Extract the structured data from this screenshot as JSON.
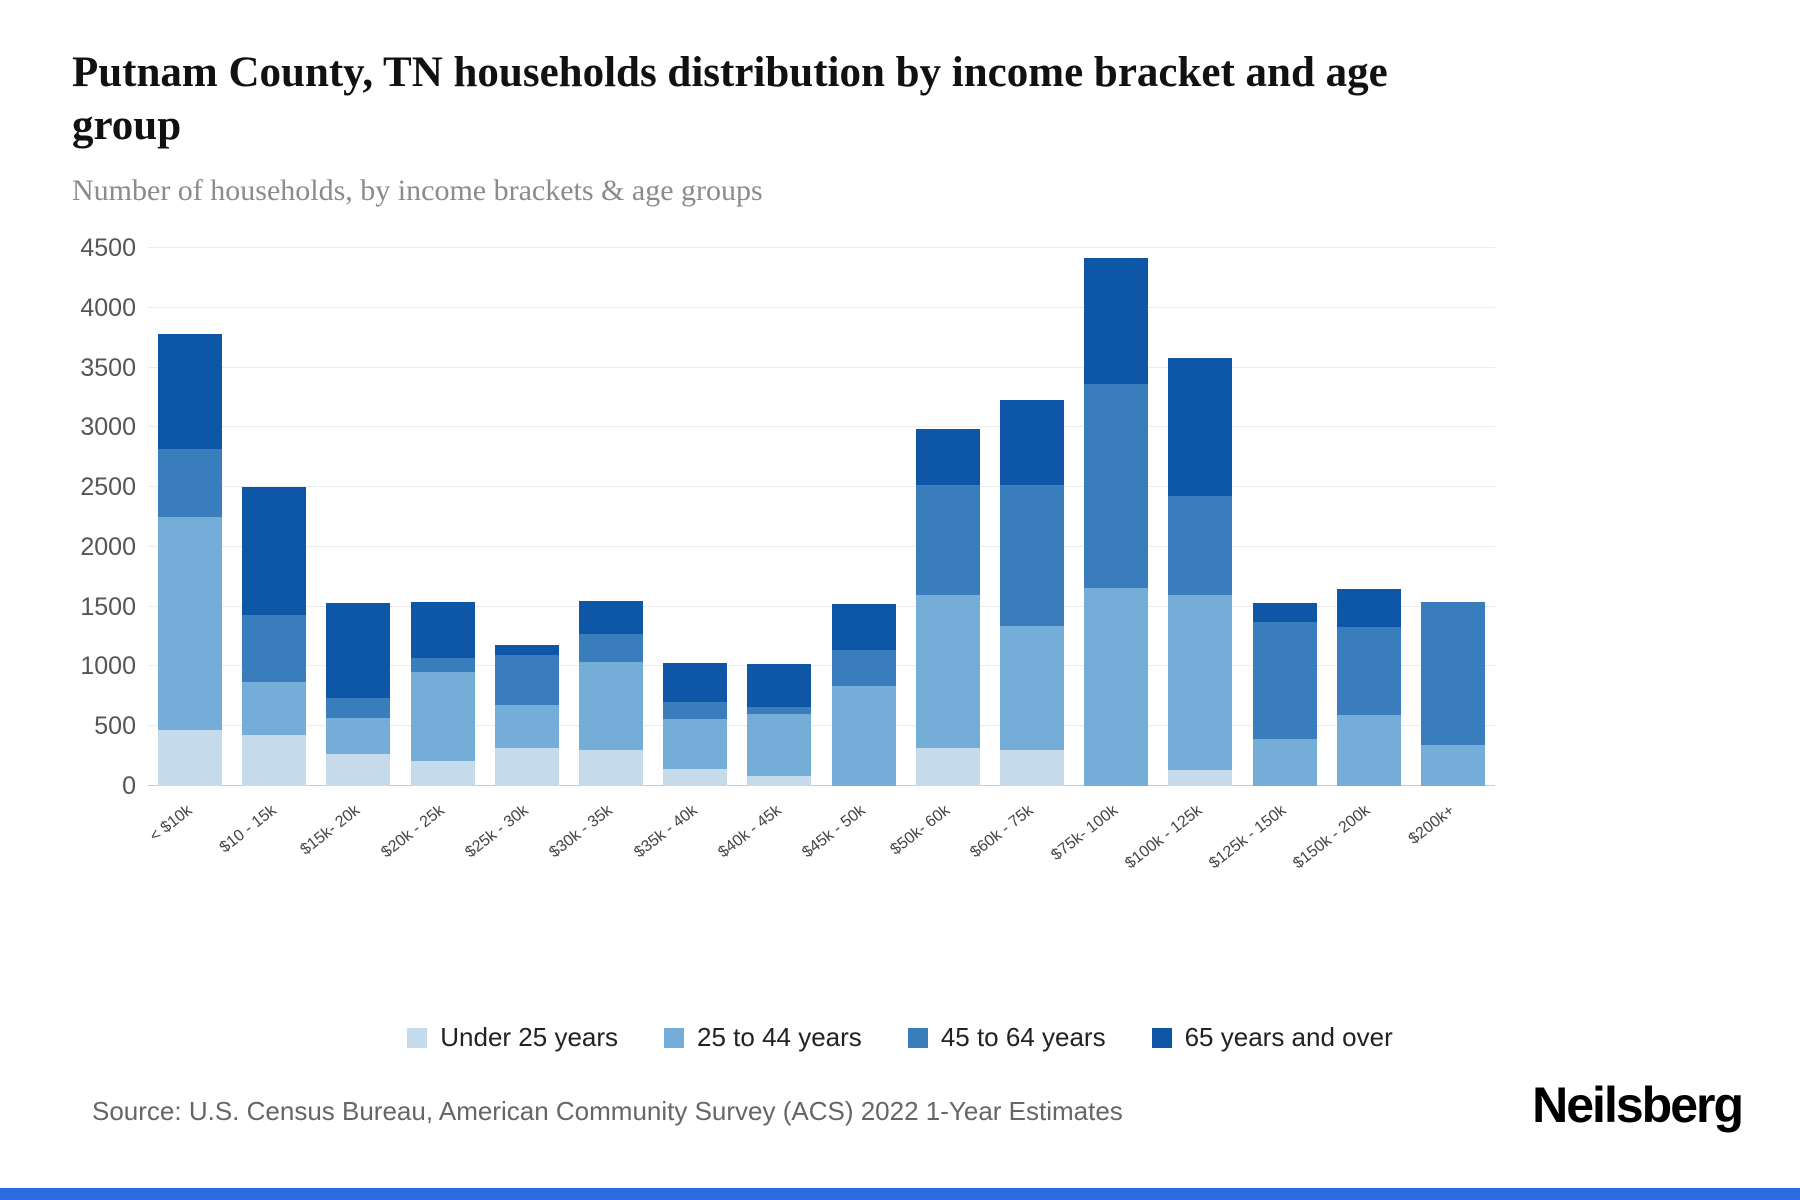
{
  "header": {
    "title": "Putnam County, TN households distribution by income bracket and age group",
    "subtitle": "Number of households, by income brackets & age groups"
  },
  "chart_data": {
    "type": "bar",
    "stacked": true,
    "title": "Putnam County, TN households distribution by income bracket and age group",
    "subtitle": "Number of households, by income brackets & age groups",
    "xlabel": "",
    "ylabel": "",
    "ylim": [
      0,
      4500
    ],
    "yticks": [
      0,
      500,
      1000,
      1500,
      2000,
      2500,
      3000,
      3500,
      4000,
      4500
    ],
    "grid": true,
    "legend_position": "bottom",
    "categories": [
      "< $10k",
      "$10 - 15k",
      "$15k- 20k",
      "$20k - 25k",
      "$25k - 30k",
      "$30k - 35k",
      "$35k - 40k",
      "$40k - 45k",
      "$45k - 50k",
      "$50k- 60k",
      "$60k - 75k",
      "$75k- 100k",
      "$100k - 125k",
      "$125k - 150k",
      "$150k - 200k",
      "$200k+"
    ],
    "series": [
      {
        "name": "Under 25 years",
        "color": "#c5dbeb",
        "values": [
          470,
          430,
          270,
          210,
          320,
          300,
          140,
          80,
          0,
          320,
          300,
          0,
          130,
          0,
          0,
          0
        ]
      },
      {
        "name": "25 to 44 years",
        "color": "#74aed8",
        "values": [
          1780,
          440,
          300,
          740,
          360,
          740,
          420,
          520,
          840,
          1280,
          1040,
          1660,
          1470,
          390,
          590,
          340
        ]
      },
      {
        "name": "45 to 64 years",
        "color": "#3a7dbd",
        "values": [
          570,
          560,
          170,
          120,
          420,
          230,
          140,
          60,
          300,
          920,
          1180,
          1700,
          830,
          980,
          740,
          1200
        ]
      },
      {
        "name": "65 years and over",
        "color": "#0d57a6",
        "values": [
          960,
          1070,
          790,
          470,
          80,
          280,
          330,
          360,
          380,
          470,
          710,
          1060,
          1150,
          160,
          320,
          0
        ]
      }
    ]
  },
  "footer": {
    "source": "Source: U.S. Census Bureau, American Community Survey (ACS) 2022 1-Year Estimates",
    "brand": "Neilsberg",
    "accent_color": "#2b6de0"
  }
}
